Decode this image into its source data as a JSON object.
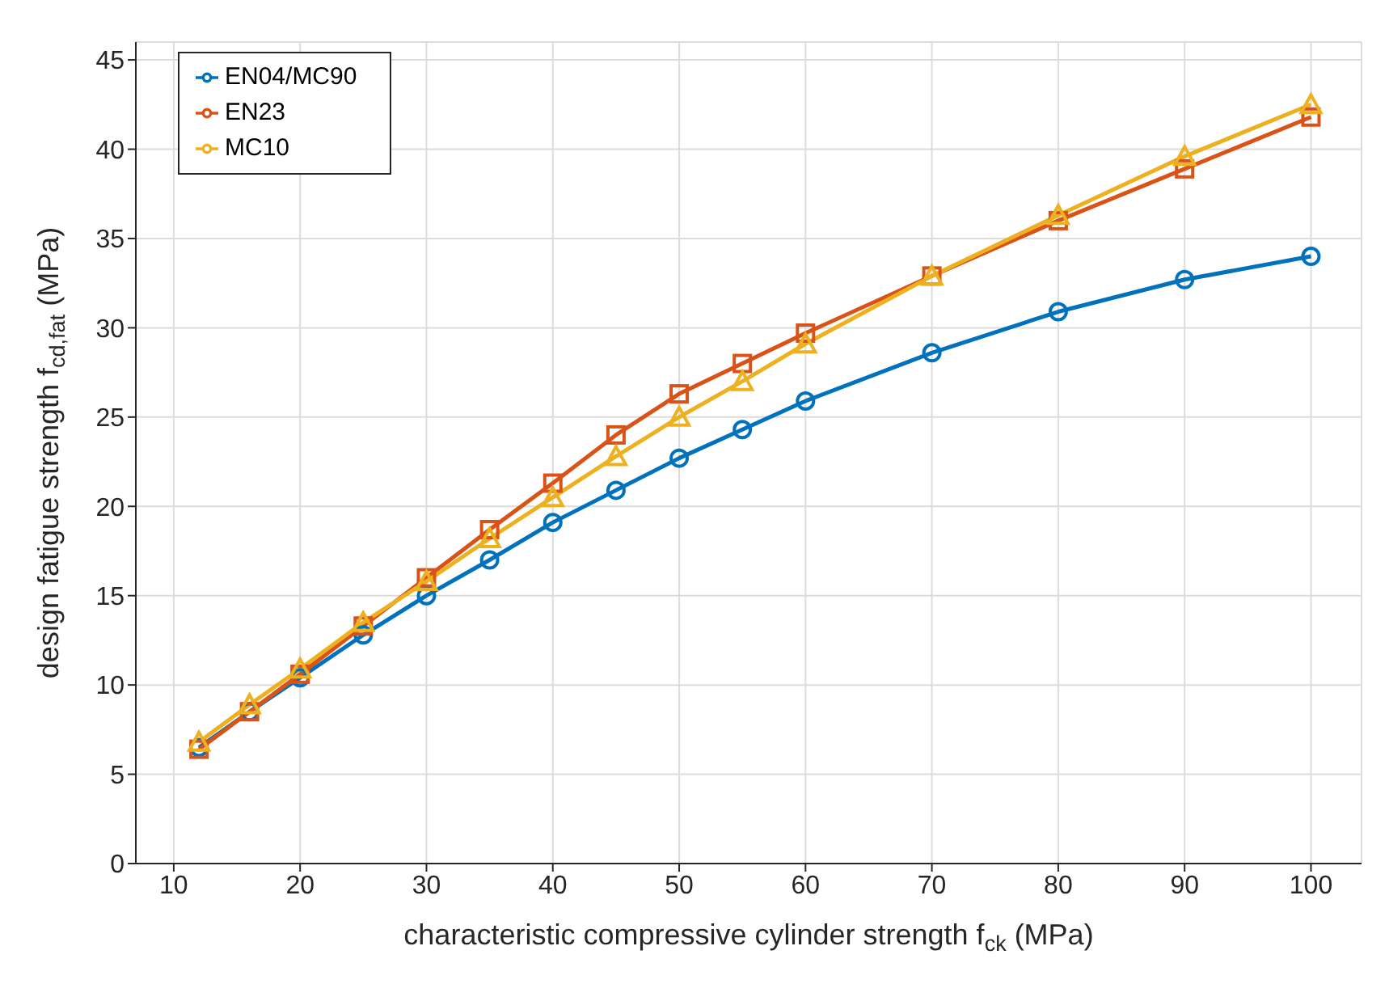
{
  "chart_data": {
    "type": "line",
    "xlabel": "characteristic compressive cylinder strength f$_{ck}$ (MPa)",
    "ylabel": "design fatigue strength f$_{cd,fat}$ (MPa)",
    "x": [
      12,
      16,
      20,
      25,
      30,
      35,
      40,
      45,
      50,
      55,
      60,
      70,
      80,
      90,
      100
    ],
    "series": [
      {
        "name": "EN04/MC90",
        "color": "#0072bd",
        "marker": "circle",
        "values": [
          6.5,
          8.5,
          10.4,
          12.8,
          15.0,
          17.0,
          19.1,
          20.9,
          22.7,
          24.3,
          25.9,
          28.6,
          30.9,
          32.7,
          34.0
        ]
      },
      {
        "name": "EN23",
        "color": "#d95319",
        "marker": "square",
        "values": [
          6.4,
          8.5,
          10.6,
          13.3,
          16.0,
          18.7,
          21.3,
          24.0,
          26.3,
          28.0,
          29.7,
          32.9,
          36.0,
          38.9,
          41.8
        ]
      },
      {
        "name": "MC10",
        "color": "#edb120",
        "marker": "triangle",
        "values": [
          6.8,
          8.9,
          10.9,
          13.5,
          15.8,
          18.2,
          20.5,
          22.8,
          25.0,
          27.0,
          29.1,
          32.9,
          36.3,
          39.6,
          42.5
        ]
      }
    ],
    "xlim": [
      7,
      104
    ],
    "xticks": [
      10,
      20,
      30,
      40,
      50,
      60,
      70,
      80,
      90,
      100
    ],
    "ylim": [
      0,
      46
    ],
    "yticks": [
      0,
      5,
      10,
      15,
      20,
      25,
      30,
      35,
      40,
      45
    ],
    "grid": true,
    "legend": "top left",
    "line_style": "solid"
  }
}
